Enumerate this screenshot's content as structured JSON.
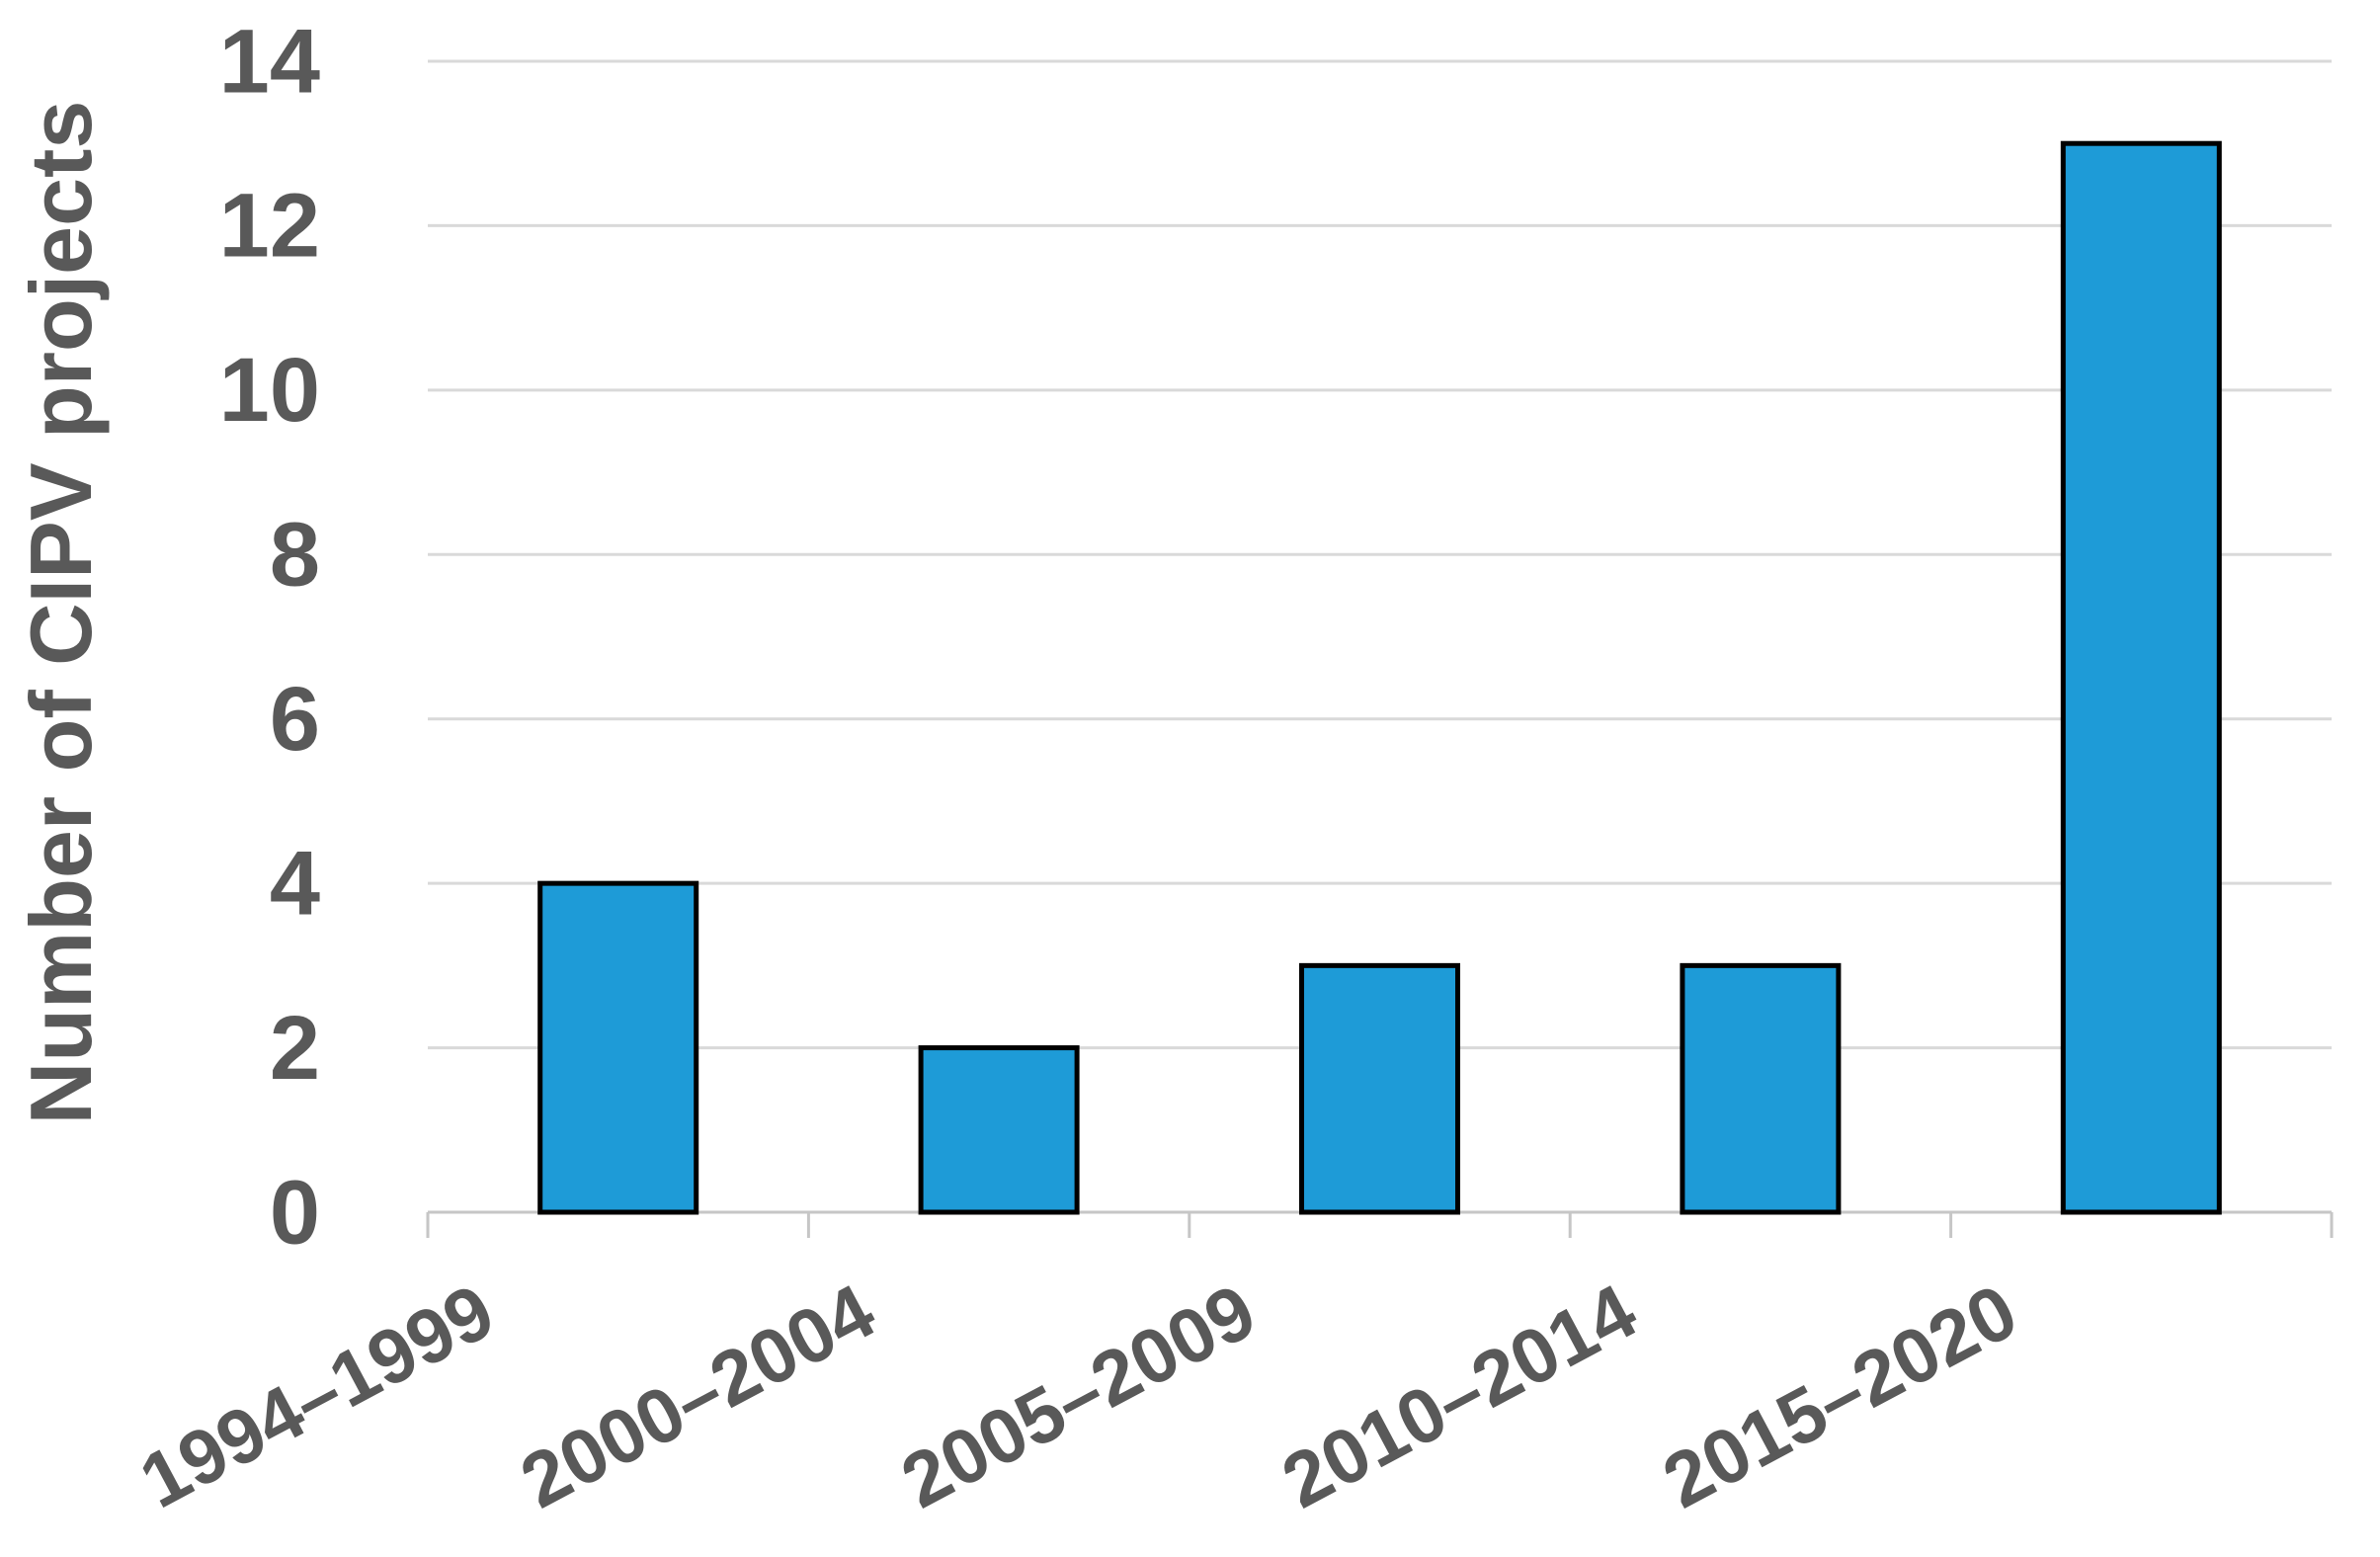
{
  "chart_data": {
    "type": "bar",
    "title": "",
    "xlabel": "",
    "ylabel": "Number of CIPV projects",
    "categories": [
      "1994–1999",
      "2000–2004",
      "2005–2009",
      "2010–2014",
      "2015–2020"
    ],
    "values": [
      4,
      2,
      3,
      3,
      13
    ],
    "ylim": [
      0,
      14
    ],
    "yticks": [
      0,
      2,
      4,
      6,
      8,
      10,
      12,
      14
    ],
    "grid": "horizontal",
    "legend": "none",
    "colors": {
      "bar_fill": "#1E9BD7",
      "bar_border": "#000000",
      "text": "#595959",
      "gridline": "#D9D9D9",
      "axis_line": "#C6C6C6",
      "background": "#FFFFFF"
    }
  }
}
